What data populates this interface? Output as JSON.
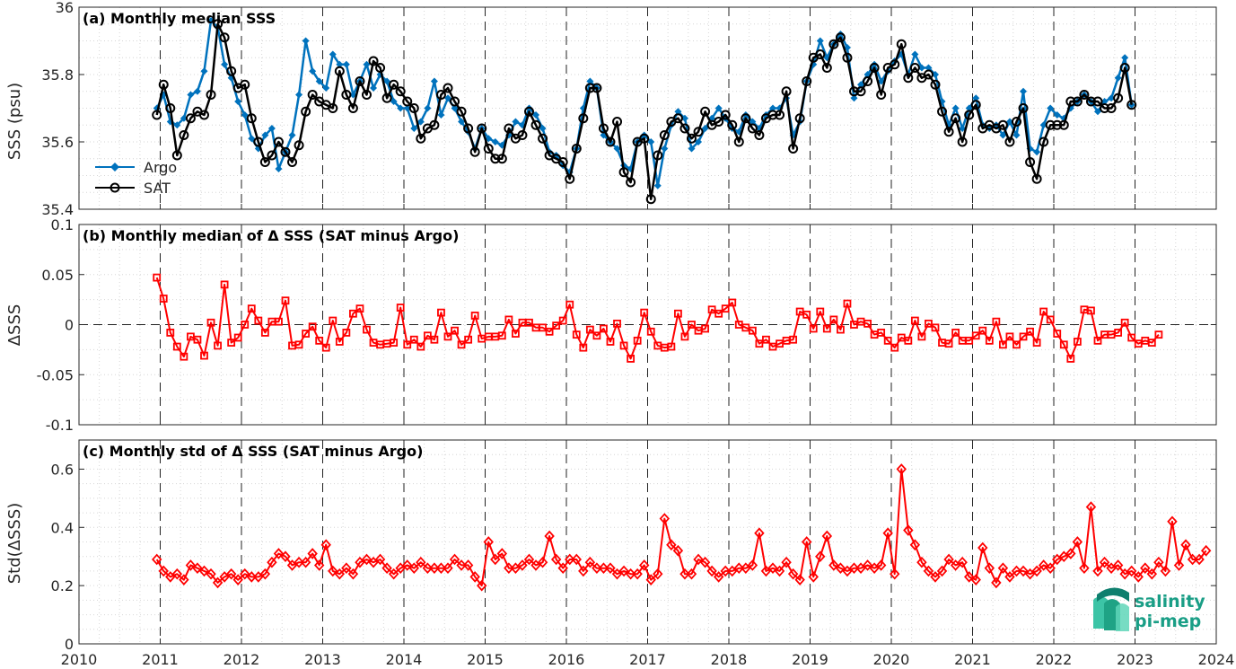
{
  "chart_data": [
    {
      "type": "line",
      "title": "(a) Monthly median SSS",
      "ylabel": "SSS (psu)",
      "ylim": [
        35.4,
        36
      ],
      "yticks": [
        "35.4",
        "35.6",
        "35.8",
        "36"
      ],
      "legend": {
        "placement": "bottom-left",
        "entries": [
          "Argo",
          "SAT"
        ]
      },
      "colors": {
        "Argo": "#0072bd",
        "SAT": "#000000"
      },
      "x_start": 2010.958,
      "x_step_months": 1,
      "series": [
        {
          "name": "Argo",
          "values": [
            35.7,
            35.74,
            35.66,
            35.65,
            35.67,
            35.74,
            35.75,
            35.81,
            35.96,
            35.94,
            35.83,
            35.79,
            35.72,
            35.68,
            35.61,
            35.58,
            35.62,
            35.64,
            35.52,
            35.57,
            35.62,
            35.74,
            35.9,
            35.81,
            35.78,
            35.76,
            35.86,
            35.83,
            35.83,
            35.74,
            35.78,
            35.83,
            35.76,
            35.8,
            35.78,
            35.72,
            35.7,
            35.7,
            35.64,
            35.66,
            35.7,
            35.78,
            35.68,
            35.73,
            35.7,
            35.66,
            35.63,
            35.58,
            35.64,
            35.61,
            35.6,
            35.59,
            35.62,
            35.66,
            35.65,
            35.7,
            35.68,
            35.64,
            35.57,
            35.56,
            35.53,
            35.51,
            35.58,
            35.7,
            35.78,
            35.76,
            35.62,
            35.6,
            35.58,
            35.53,
            35.52,
            35.6,
            35.62,
            35.6,
            35.47,
            35.58,
            35.65,
            35.69,
            35.67,
            35.58,
            35.6,
            35.64,
            35.67,
            35.7,
            35.67,
            35.64,
            35.63,
            35.68,
            35.66,
            35.64,
            35.68,
            35.7,
            35.7,
            35.73,
            35.62,
            35.66,
            35.78,
            35.83,
            35.9,
            35.85,
            35.89,
            35.92,
            35.88,
            35.73,
            35.77,
            35.8,
            35.83,
            35.78,
            35.81,
            35.84,
            35.86,
            35.8,
            35.86,
            35.82,
            35.82,
            35.8,
            35.72,
            35.65,
            35.7,
            35.64,
            35.7,
            35.73,
            35.65,
            35.64,
            35.65,
            35.62,
            35.66,
            35.62,
            35.75,
            35.58,
            35.57,
            35.65,
            35.7,
            35.68,
            35.67,
            35.7,
            35.72,
            35.74,
            35.72,
            35.69,
            35.72,
            35.73,
            35.79,
            35.85,
            35.71
          ]
        },
        {
          "name": "SAT",
          "values": [
            35.68,
            35.77,
            35.7,
            35.56,
            35.62,
            35.67,
            35.69,
            35.68,
            35.74,
            35.95,
            35.91,
            35.81,
            35.76,
            35.77,
            35.67,
            35.6,
            35.54,
            35.56,
            35.6,
            35.57,
            35.54,
            35.59,
            35.69,
            35.74,
            35.72,
            35.71,
            35.7,
            35.81,
            35.74,
            35.7,
            35.78,
            35.74,
            35.84,
            35.82,
            35.73,
            35.77,
            35.75,
            35.72,
            35.7,
            35.61,
            35.64,
            35.65,
            35.74,
            35.76,
            35.72,
            35.69,
            35.64,
            35.57,
            35.64,
            35.58,
            35.55,
            35.55,
            35.64,
            35.61,
            35.62,
            35.69,
            35.65,
            35.61,
            35.56,
            35.55,
            35.54,
            35.49,
            35.58,
            35.67,
            35.76,
            35.76,
            35.64,
            35.6,
            35.66,
            35.51,
            35.48,
            35.6,
            35.61,
            35.43,
            35.56,
            35.62,
            35.66,
            35.67,
            35.64,
            35.61,
            35.63,
            35.69,
            35.65,
            35.66,
            35.68,
            35.65,
            35.6,
            35.67,
            35.64,
            35.62,
            35.67,
            35.68,
            35.68,
            35.75,
            35.58,
            35.67,
            35.78,
            35.85,
            35.86,
            35.82,
            35.89,
            35.91,
            35.85,
            35.75,
            35.75,
            35.78,
            35.82,
            35.74,
            35.82,
            35.83,
            35.89,
            35.79,
            35.82,
            35.79,
            35.8,
            35.77,
            35.69,
            35.63,
            35.67,
            35.6,
            35.68,
            35.71,
            35.64,
            35.65,
            35.64,
            35.65,
            35.6,
            35.66,
            35.7,
            35.54,
            35.49,
            35.6,
            35.65,
            35.65,
            35.65,
            35.72,
            35.72,
            35.74,
            35.72,
            35.72,
            35.7,
            35.7,
            35.73,
            35.82,
            35.71
          ]
        }
      ]
    },
    {
      "type": "line",
      "title": "(b) Monthly median of Δ SSS (SAT minus Argo)",
      "ylabel": "ΔSSS",
      "ylim": [
        -0.1,
        0.1
      ],
      "yticks": [
        "-0.1",
        "-0.05",
        "0",
        "0.05",
        "0.1"
      ],
      "reference_line": 0,
      "colors": {
        "line": "#ff0000"
      },
      "x_start": 2010.958,
      "x_step_months": 1,
      "series": [
        {
          "name": "",
          "values": [
            0.047,
            0.026,
            -0.008,
            -0.022,
            -0.032,
            -0.012,
            -0.015,
            -0.031,
            0.002,
            -0.021,
            0.04,
            -0.018,
            -0.013,
            0.0,
            0.016,
            0.004,
            -0.008,
            0.003,
            0.003,
            0.024,
            -0.021,
            -0.02,
            -0.009,
            -0.002,
            -0.016,
            -0.023,
            0.004,
            -0.017,
            -0.008,
            0.011,
            0.016,
            -0.005,
            -0.018,
            -0.02,
            -0.019,
            -0.018,
            0.017,
            -0.02,
            -0.015,
            -0.022,
            -0.011,
            -0.015,
            0.012,
            -0.012,
            -0.006,
            -0.02,
            -0.015,
            0.009,
            -0.014,
            -0.012,
            -0.012,
            -0.011,
            0.005,
            -0.009,
            0.002,
            0.002,
            -0.003,
            -0.003,
            -0.007,
            -0.001,
            0.004,
            0.02,
            -0.01,
            -0.023,
            -0.005,
            -0.011,
            -0.004,
            -0.017,
            0.001,
            -0.021,
            -0.034,
            -0.016,
            0.012,
            -0.007,
            -0.021,
            -0.023,
            -0.022,
            0.011,
            -0.012,
            0.0,
            -0.006,
            -0.004,
            0.015,
            0.011,
            0.016,
            0.022,
            0.0,
            -0.003,
            -0.006,
            -0.019,
            -0.015,
            -0.022,
            -0.019,
            -0.016,
            -0.015,
            0.013,
            0.01,
            -0.004,
            0.013,
            -0.004,
            0.005,
            -0.005,
            0.021,
            0.0,
            0.003,
            0.001,
            -0.01,
            -0.008,
            -0.016,
            -0.023,
            -0.013,
            -0.016,
            0.004,
            -0.012,
            0.001,
            -0.003,
            -0.018,
            -0.019,
            -0.008,
            -0.016,
            -0.016,
            -0.011,
            -0.006,
            -0.016,
            0.003,
            -0.02,
            -0.012,
            -0.02,
            -0.012,
            -0.007,
            -0.018,
            0.013,
            0.005,
            -0.009,
            -0.02,
            -0.034,
            -0.017,
            0.015,
            0.014,
            -0.016,
            -0.01,
            -0.01,
            -0.008,
            0.002,
            -0.013,
            -0.019,
            -0.016,
            -0.018,
            -0.01
          ]
        }
      ]
    },
    {
      "type": "line",
      "title": "(c) Monthly std of Δ SSS (SAT minus Argo)",
      "ylabel": "Std(ΔSSS)",
      "ylim": [
        0,
        0.7
      ],
      "yticks": [
        "0",
        "0.2",
        "0.4",
        "0.6"
      ],
      "colors": {
        "line": "#ff0000"
      },
      "x_start": 2010.958,
      "x_step_months": 1,
      "series": [
        {
          "name": "",
          "values": [
            0.29,
            0.25,
            0.23,
            0.24,
            0.22,
            0.27,
            0.26,
            0.25,
            0.24,
            0.21,
            0.23,
            0.24,
            0.22,
            0.24,
            0.23,
            0.23,
            0.24,
            0.28,
            0.31,
            0.3,
            0.27,
            0.28,
            0.28,
            0.31,
            0.27,
            0.34,
            0.25,
            0.24,
            0.26,
            0.24,
            0.28,
            0.29,
            0.28,
            0.29,
            0.26,
            0.24,
            0.26,
            0.27,
            0.26,
            0.28,
            0.26,
            0.26,
            0.26,
            0.26,
            0.29,
            0.27,
            0.27,
            0.23,
            0.2,
            0.35,
            0.29,
            0.31,
            0.26,
            0.26,
            0.27,
            0.29,
            0.27,
            0.28,
            0.37,
            0.29,
            0.26,
            0.29,
            0.29,
            0.25,
            0.28,
            0.26,
            0.26,
            0.26,
            0.24,
            0.25,
            0.24,
            0.24,
            0.27,
            0.22,
            0.24,
            0.43,
            0.34,
            0.32,
            0.24,
            0.24,
            0.29,
            0.28,
            0.25,
            0.23,
            0.25,
            0.25,
            0.26,
            0.26,
            0.27,
            0.38,
            0.25,
            0.26,
            0.25,
            0.28,
            0.24,
            0.22,
            0.35,
            0.23,
            0.3,
            0.37,
            0.27,
            0.26,
            0.25,
            0.26,
            0.26,
            0.27,
            0.26,
            0.27,
            0.38,
            0.24,
            0.6,
            0.39,
            0.34,
            0.28,
            0.25,
            0.23,
            0.25,
            0.29,
            0.27,
            0.28,
            0.23,
            0.22,
            0.33,
            0.26,
            0.21,
            0.26,
            0.23,
            0.25,
            0.25,
            0.24,
            0.25,
            0.27,
            0.26,
            0.29,
            0.3,
            0.31,
            0.35,
            0.26,
            0.47,
            0.25,
            0.28,
            0.26,
            0.27,
            0.24,
            0.25,
            0.23,
            0.26,
            0.24,
            0.28,
            0.25,
            0.42,
            0.27,
            0.34,
            0.29,
            0.29,
            0.32
          ]
        }
      ]
    }
  ],
  "x_axis": {
    "min": 2010,
    "max": 2024,
    "tick_labels": [
      "2010",
      "2011",
      "2012",
      "2013",
      "2014",
      "2015",
      "2016",
      "2017",
      "2018",
      "2019",
      "2020",
      "2021",
      "2022",
      "2023",
      "2024"
    ]
  },
  "logo": {
    "line1": "salinity",
    "line2": "pi-mep"
  }
}
